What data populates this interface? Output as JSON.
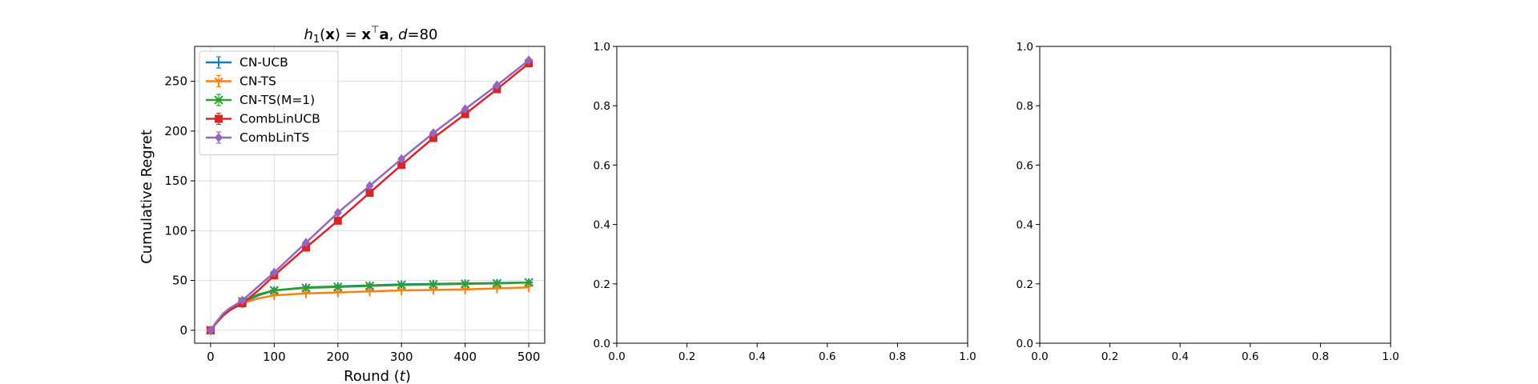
{
  "chart_data": [
    {
      "type": "line",
      "title_parts": {
        "h": "h",
        "sub": "1",
        "open": "(",
        "x": "x",
        "close": ") = ",
        "x2": "x",
        "sup": "⊤",
        "a": "a",
        "comma": ", ",
        "d": "d",
        "eq": "=80"
      },
      "xlabel_parts": {
        "text": "Round (",
        "t": "t",
        "close": ")"
      },
      "ylabel": "Cumulative Regret",
      "xlim": [
        -25,
        525
      ],
      "ylim": [
        -13,
        285
      ],
      "xticks": [
        0,
        100,
        200,
        300,
        400,
        500
      ],
      "yticks": [
        0,
        50,
        100,
        150,
        200,
        250
      ],
      "grid": true,
      "legend_position": "upper-left",
      "series": [
        {
          "name": "CN-UCB",
          "color": "#1f77b4",
          "marker": "plus",
          "x": [
            0,
            10,
            20,
            30,
            50,
            75,
            100,
            150,
            200,
            250,
            300,
            350,
            400,
            450,
            500
          ],
          "y": [
            0,
            8,
            15,
            20,
            28,
            35,
            40,
            43,
            44,
            45,
            46,
            46.5,
            47,
            47.5,
            48
          ]
        },
        {
          "name": "CN-TS",
          "color": "#ff7f0e",
          "marker": "tri",
          "x": [
            0,
            10,
            20,
            30,
            50,
            75,
            100,
            150,
            200,
            250,
            300,
            350,
            400,
            450,
            500
          ],
          "y": [
            0,
            8,
            15,
            20,
            27,
            32,
            35,
            37,
            38,
            39,
            40,
            40.5,
            41,
            42,
            43
          ]
        },
        {
          "name": "CN-TS(M=1)",
          "color": "#2ca02c",
          "marker": "x",
          "x": [
            0,
            10,
            20,
            30,
            50,
            75,
            100,
            150,
            200,
            250,
            300,
            350,
            400,
            450,
            500
          ],
          "y": [
            0,
            8,
            15,
            21,
            29,
            36,
            40,
            42.5,
            43.5,
            44.5,
            45.5,
            46,
            46.5,
            47,
            48
          ]
        },
        {
          "name": "CombLinUCB",
          "color": "#d62728",
          "marker": "square",
          "x": [
            0,
            10,
            20,
            30,
            50,
            75,
            100,
            150,
            200,
            250,
            300,
            350,
            400,
            450,
            500
          ],
          "y": [
            0,
            8,
            15,
            20,
            27,
            40,
            55,
            83,
            110,
            138,
            166,
            193,
            217,
            242,
            268
          ]
        },
        {
          "name": "CombLinTS",
          "color": "#9467bd",
          "marker": "diamond",
          "x": [
            0,
            10,
            20,
            30,
            50,
            75,
            100,
            150,
            200,
            250,
            300,
            350,
            400,
            450,
            500
          ],
          "y": [
            0,
            9,
            17,
            22,
            30,
            44,
            58,
            88,
            118,
            145,
            172,
            198,
            222,
            246,
            271
          ]
        }
      ]
    },
    {
      "type": "line",
      "xlim": [
        0,
        1
      ],
      "ylim": [
        0,
        1
      ],
      "xticks": [
        0.0,
        0.2,
        0.4,
        0.6,
        0.8,
        1.0
      ],
      "yticks": [
        0.0,
        0.2,
        0.4,
        0.6,
        0.8,
        1.0
      ],
      "tick_labels": [
        "0.0",
        "0.2",
        "0.4",
        "0.6",
        "0.8",
        "1.0"
      ],
      "grid": false,
      "series": []
    },
    {
      "type": "line",
      "xlim": [
        0,
        1
      ],
      "ylim": [
        0,
        1
      ],
      "xticks": [
        0.0,
        0.2,
        0.4,
        0.6,
        0.8,
        1.0
      ],
      "yticks": [
        0.0,
        0.2,
        0.4,
        0.6,
        0.8,
        1.0
      ],
      "tick_labels": [
        "0.0",
        "0.2",
        "0.4",
        "0.6",
        "0.8",
        "1.0"
      ],
      "grid": false,
      "series": []
    }
  ]
}
